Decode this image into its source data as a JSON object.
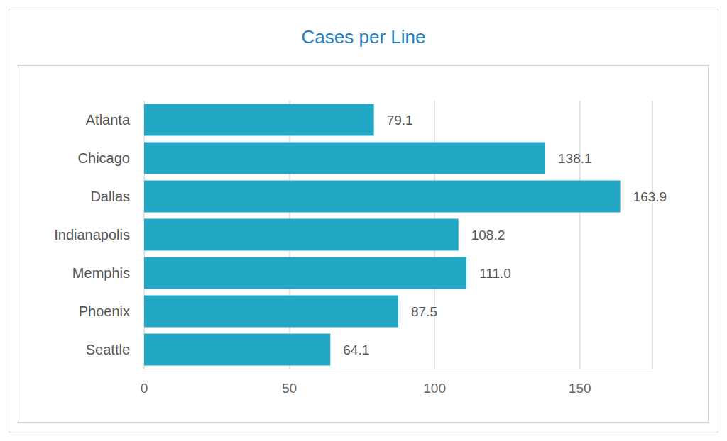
{
  "chart_data": {
    "type": "bar",
    "title": "Cases per Line",
    "orientation": "horizontal",
    "categories": [
      "Atlanta",
      "Chicago",
      "Dallas",
      "Indianapolis",
      "Memphis",
      "Phoenix",
      "Seattle"
    ],
    "values": [
      79.1,
      138.1,
      163.9,
      108.2,
      111.0,
      87.5,
      64.1
    ],
    "value_labels": [
      "79.1",
      "138.1",
      "163.9",
      "108.2",
      "111.0",
      "87.5",
      "64.1"
    ],
    "color": "#22a7c4",
    "xlim": [
      0,
      175
    ],
    "xticks": [
      0,
      50,
      100,
      150
    ],
    "grid": true,
    "data_labels": true
  }
}
